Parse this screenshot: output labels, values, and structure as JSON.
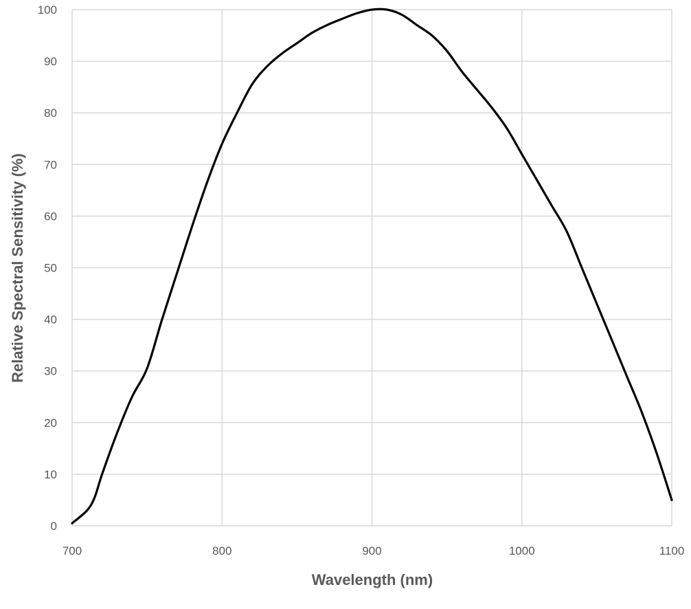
{
  "chart_data": {
    "type": "line",
    "title": "",
    "xlabel": "Wavelength (nm)",
    "ylabel": "Relative Spectral Sensitivity (%)",
    "xlim": [
      700,
      1100
    ],
    "ylim": [
      0,
      100
    ],
    "xticks": [
      700,
      800,
      900,
      1000,
      1100
    ],
    "yticks": [
      0,
      10,
      20,
      30,
      40,
      50,
      60,
      70,
      80,
      90,
      100
    ],
    "grid": true,
    "legend": "none",
    "series": [
      {
        "color": "#000000",
        "x": [
          700,
          710,
          715,
          720,
          730,
          740,
          750,
          760,
          770,
          780,
          790,
          800,
          810,
          820,
          830,
          840,
          850,
          860,
          870,
          880,
          890,
          900,
          910,
          920,
          930,
          940,
          950,
          960,
          970,
          980,
          990,
          1000,
          1010,
          1020,
          1030,
          1040,
          1050,
          1060,
          1070,
          1080,
          1090,
          1100
        ],
        "y": [
          0.5,
          3,
          5.5,
          10,
          18,
          25,
          30.5,
          40,
          49,
          58,
          66.5,
          74,
          80,
          85.5,
          89,
          91.5,
          93.5,
          95.5,
          97,
          98.2,
          99.3,
          100,
          100,
          99,
          97,
          95,
          92,
          88,
          84.5,
          81,
          77,
          72,
          67,
          62,
          57,
          50,
          43,
          36,
          29,
          22,
          14,
          5
        ]
      }
    ]
  }
}
